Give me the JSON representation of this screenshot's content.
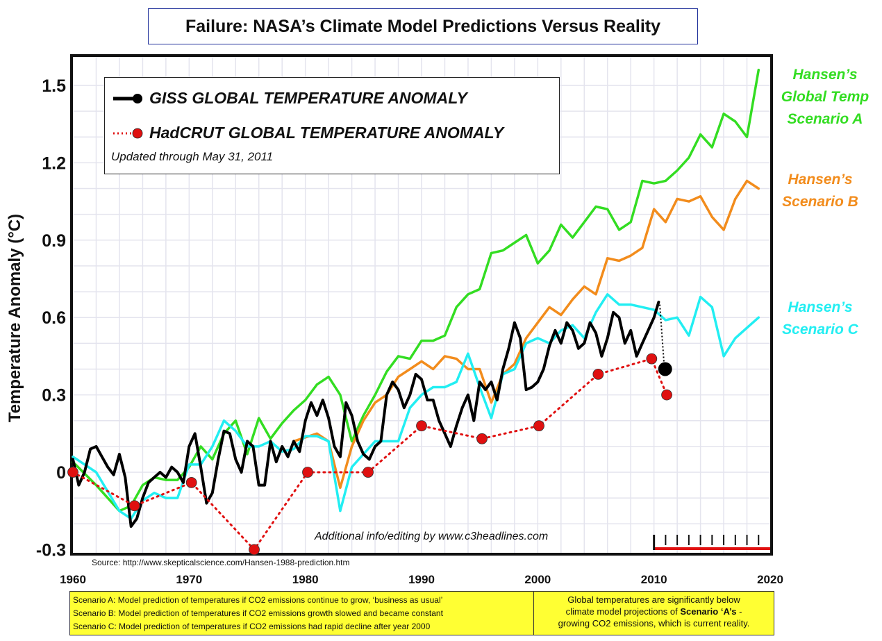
{
  "title": "Failure: NASA’s Climate Model Predictions Versus Reality",
  "legend": {
    "giss_label": "GISS GLOBAL TEMPERATURE ANOMALY",
    "hadcrut_label": "HadCRUT  GLOBAL TEMPERATURE ANOMALY",
    "updated": "Updated through May 31, 2011"
  },
  "scenario_labels": {
    "a": [
      "Hansen’s",
      "Global Temp",
      "Scenario A"
    ],
    "b": [
      "Hansen’s",
      "Scenario B"
    ],
    "c": [
      "Hansen’s",
      "Scenario C"
    ]
  },
  "credit": "Additional info/editing by www.c3headlines.com",
  "source": "Source: http://www.skepticalscience.com/Hansen-1988-prediction.htm",
  "footer": {
    "lines": [
      "Scenario A: Model prediction of temperatures if CO2 emissions continue to grow, ‘business as usual’",
      "Scenario B: Model prediction of temperatures if CO2 emissions growth slowed and became constant",
      "Scenario C: Model prediction of temperatures if CO2 emissions had rapid decline after year 2000"
    ],
    "summary_1": "Global temperatures are significantly below",
    "summary_2a": "climate model projections of ",
    "summary_2b": "Scenario ‘A’s",
    "summary_2c": "  -",
    "summary_3": "growing CO2 emissions, which is current reality."
  },
  "chart_data": {
    "type": "line",
    "title": "Failure: NASA’s Climate Model Predictions Versus Reality",
    "xlabel": "",
    "ylabel": "Temperature Anomaly (°C)",
    "xlim": [
      1960,
      2020
    ],
    "ylim": [
      -0.3,
      1.6
    ],
    "xticks": [
      1960,
      1970,
      1980,
      1990,
      2000,
      2010,
      2020
    ],
    "yticks": [
      -0.3,
      0,
      0.3,
      0.6,
      0.9,
      1.2,
      1.5
    ],
    "ytick_labels": [
      "-0.3",
      "0",
      "0.3",
      "0.6",
      "0.9",
      "1.2",
      "1.5"
    ],
    "grid": true,
    "series": [
      {
        "name": "Hansen’s Global Temp Scenario A",
        "color": "#33dd22",
        "style": "solid",
        "x": [
          1960,
          1962,
          1964,
          1965,
          1966,
          1967,
          1968,
          1969,
          1970,
          1971,
          1972,
          1973,
          1974,
          1975,
          1976,
          1977,
          1978,
          1979,
          1980,
          1981,
          1982,
          1983,
          1984,
          1985,
          1986,
          1987,
          1988,
          1989,
          1990,
          1991,
          1992,
          1993,
          1994,
          1995,
          1996,
          1997,
          1998,
          1999,
          2000,
          2001,
          2002,
          2003,
          2004,
          2005,
          2006,
          2007,
          2008,
          2009,
          2010,
          2011,
          2012,
          2013,
          2014,
          2015,
          2016,
          2017,
          2018,
          2019
        ],
        "y": [
          0.04,
          -0.05,
          -0.15,
          -0.13,
          -0.05,
          -0.02,
          -0.03,
          -0.03,
          0.02,
          0.1,
          0.05,
          0.15,
          0.2,
          0.07,
          0.21,
          0.13,
          0.19,
          0.24,
          0.28,
          0.34,
          0.37,
          0.3,
          0.12,
          0.22,
          0.3,
          0.39,
          0.45,
          0.44,
          0.51,
          0.51,
          0.53,
          0.64,
          0.69,
          0.71,
          0.85,
          0.86,
          0.89,
          0.92,
          0.81,
          0.86,
          0.96,
          0.91,
          0.97,
          1.03,
          1.02,
          0.94,
          0.97,
          1.13,
          1.12,
          1.13,
          1.17,
          1.22,
          1.31,
          1.26,
          1.39,
          1.36,
          1.3,
          1.56
        ]
      },
      {
        "name": "Hansen’s Scenario B",
        "color": "#f28c1c",
        "style": "solid",
        "x": [
          1979,
          1981,
          1982,
          1983,
          1984,
          1985,
          1986,
          1987,
          1988,
          1989,
          1990,
          1991,
          1992,
          1993,
          1994,
          1995,
          1996,
          1997,
          1998,
          1999,
          2000,
          2001,
          2002,
          2003,
          2004,
          2005,
          2006,
          2007,
          2008,
          2009,
          2010,
          2011,
          2012,
          2013,
          2014,
          2015,
          2016,
          2017,
          2018,
          2019
        ],
        "y": [
          0.12,
          0.15,
          0.12,
          -0.06,
          0.1,
          0.2,
          0.27,
          0.3,
          0.37,
          0.4,
          0.43,
          0.4,
          0.45,
          0.44,
          0.4,
          0.4,
          0.27,
          0.38,
          0.42,
          0.52,
          0.58,
          0.64,
          0.61,
          0.67,
          0.72,
          0.69,
          0.83,
          0.82,
          0.84,
          0.87,
          1.02,
          0.97,
          1.06,
          1.05,
          1.07,
          0.99,
          0.94,
          1.06,
          1.13,
          1.1
        ]
      },
      {
        "name": "Hansen’s Scenario C",
        "color": "#22eef2",
        "style": "solid",
        "x": [
          1960,
          1962,
          1964,
          1965,
          1966,
          1967,
          1968,
          1969,
          1970,
          1971,
          1972,
          1973,
          1974,
          1975,
          1976,
          1977,
          1978,
          1979,
          1980,
          1981,
          1982,
          1983,
          1984,
          1985,
          1986,
          1987,
          1988,
          1989,
          1990,
          1991,
          1992,
          1993,
          1994,
          1995,
          1996,
          1997,
          1998,
          1999,
          2000,
          2001,
          2002,
          2003,
          2004,
          2005,
          2006,
          2007,
          2008,
          2009,
          2010,
          2011,
          2012,
          2013,
          2014,
          2015,
          2016,
          2017,
          2018,
          2019
        ],
        "y": [
          0.06,
          0.0,
          -0.15,
          -0.18,
          -0.11,
          -0.08,
          -0.1,
          -0.1,
          0.03,
          0.03,
          0.1,
          0.2,
          0.16,
          0.1,
          0.1,
          0.12,
          0.08,
          0.09,
          0.14,
          0.14,
          0.12,
          -0.15,
          0.02,
          0.07,
          0.12,
          0.12,
          0.12,
          0.25,
          0.3,
          0.33,
          0.33,
          0.35,
          0.46,
          0.33,
          0.21,
          0.38,
          0.4,
          0.5,
          0.52,
          0.5,
          0.55,
          0.57,
          0.52,
          0.62,
          0.69,
          0.65,
          0.65,
          0.64,
          0.63,
          0.59,
          0.6,
          0.53,
          0.68,
          0.64,
          0.45,
          0.52,
          0.56,
          0.6
        ]
      },
      {
        "name": "GISS GLOBAL TEMPERATURE ANOMALY",
        "color": "#000000",
        "style": "solid",
        "x": [
          1960,
          1960.5,
          1961,
          1961.5,
          1962,
          1962.5,
          1963,
          1963.5,
          1964,
          1964.5,
          1965,
          1965.5,
          1966,
          1966.5,
          1967,
          1967.5,
          1968,
          1968.5,
          1969,
          1969.5,
          1970,
          1970.5,
          1971,
          1971.5,
          1972,
          1972.5,
          1973,
          1973.5,
          1974,
          1974.5,
          1975,
          1975.5,
          1976,
          1976.5,
          1977,
          1977.5,
          1978,
          1978.5,
          1979,
          1979.5,
          1980,
          1980.5,
          1981,
          1981.5,
          1982,
          1982.5,
          1983,
          1983.5,
          1984,
          1984.5,
          1985,
          1985.5,
          1986,
          1986.5,
          1987,
          1987.5,
          1988,
          1988.5,
          1989,
          1989.5,
          1990,
          1990.5,
          1991,
          1991.5,
          1992,
          1992.5,
          1993,
          1993.5,
          1994,
          1994.5,
          1995,
          1995.5,
          1996,
          1996.5,
          1997,
          1997.5,
          1998,
          1998.5,
          1999,
          1999.5,
          2000,
          2000.5,
          2001,
          2001.5,
          2002,
          2002.5,
          2003,
          2003.5,
          2004,
          2004.5,
          2005,
          2005.5,
          2006,
          2006.5,
          2007,
          2007.5,
          2008,
          2008.5,
          2009,
          2009.5,
          2010,
          2010.4
        ],
        "y": [
          0.05,
          -0.05,
          0.0,
          0.09,
          0.1,
          0.06,
          0.02,
          -0.01,
          0.07,
          -0.02,
          -0.21,
          -0.18,
          -0.1,
          -0.04,
          -0.02,
          0.0,
          -0.02,
          0.02,
          0.0,
          -0.04,
          0.1,
          0.15,
          0.02,
          -0.12,
          -0.08,
          0.05,
          0.16,
          0.15,
          0.05,
          0.0,
          0.12,
          0.1,
          -0.05,
          -0.05,
          0.12,
          0.04,
          0.1,
          0.06,
          0.12,
          0.08,
          0.2,
          0.27,
          0.22,
          0.28,
          0.21,
          0.1,
          0.06,
          0.27,
          0.22,
          0.12,
          0.07,
          0.05,
          0.1,
          0.12,
          0.3,
          0.35,
          0.32,
          0.25,
          0.3,
          0.38,
          0.36,
          0.28,
          0.28,
          0.2,
          0.15,
          0.1,
          0.18,
          0.25,
          0.3,
          0.2,
          0.35,
          0.32,
          0.35,
          0.28,
          0.4,
          0.48,
          0.58,
          0.52,
          0.32,
          0.33,
          0.35,
          0.4,
          0.49,
          0.55,
          0.5,
          0.58,
          0.55,
          0.48,
          0.5,
          0.58,
          0.54,
          0.45,
          0.52,
          0.62,
          0.6,
          0.5,
          0.55,
          0.45,
          0.5,
          0.55,
          0.6,
          0.66
        ]
      },
      {
        "name": "HadCRUT  GLOBAL TEMPERATURE ANOMALY",
        "color": "#e01010",
        "style": "dotted",
        "x": [
          1960,
          1965.3,
          1970.2,
          1975.6,
          1980.2,
          1985.4,
          1990,
          1995.2,
          2000.1,
          2005.2,
          2009.8,
          2011.1
        ],
        "y": [
          0.0,
          -0.13,
          -0.04,
          -0.3,
          0.0,
          0.0,
          0.18,
          0.13,
          0.18,
          0.38,
          0.44,
          0.3
        ]
      }
    ],
    "giss_latest_point": {
      "x": 2010.9,
      "y": 0.4
    },
    "giss_connector": {
      "from": {
        "x": 2010.5,
        "y": 0.65
      },
      "to": {
        "x": 2010.9,
        "y": 0.4
      }
    }
  }
}
